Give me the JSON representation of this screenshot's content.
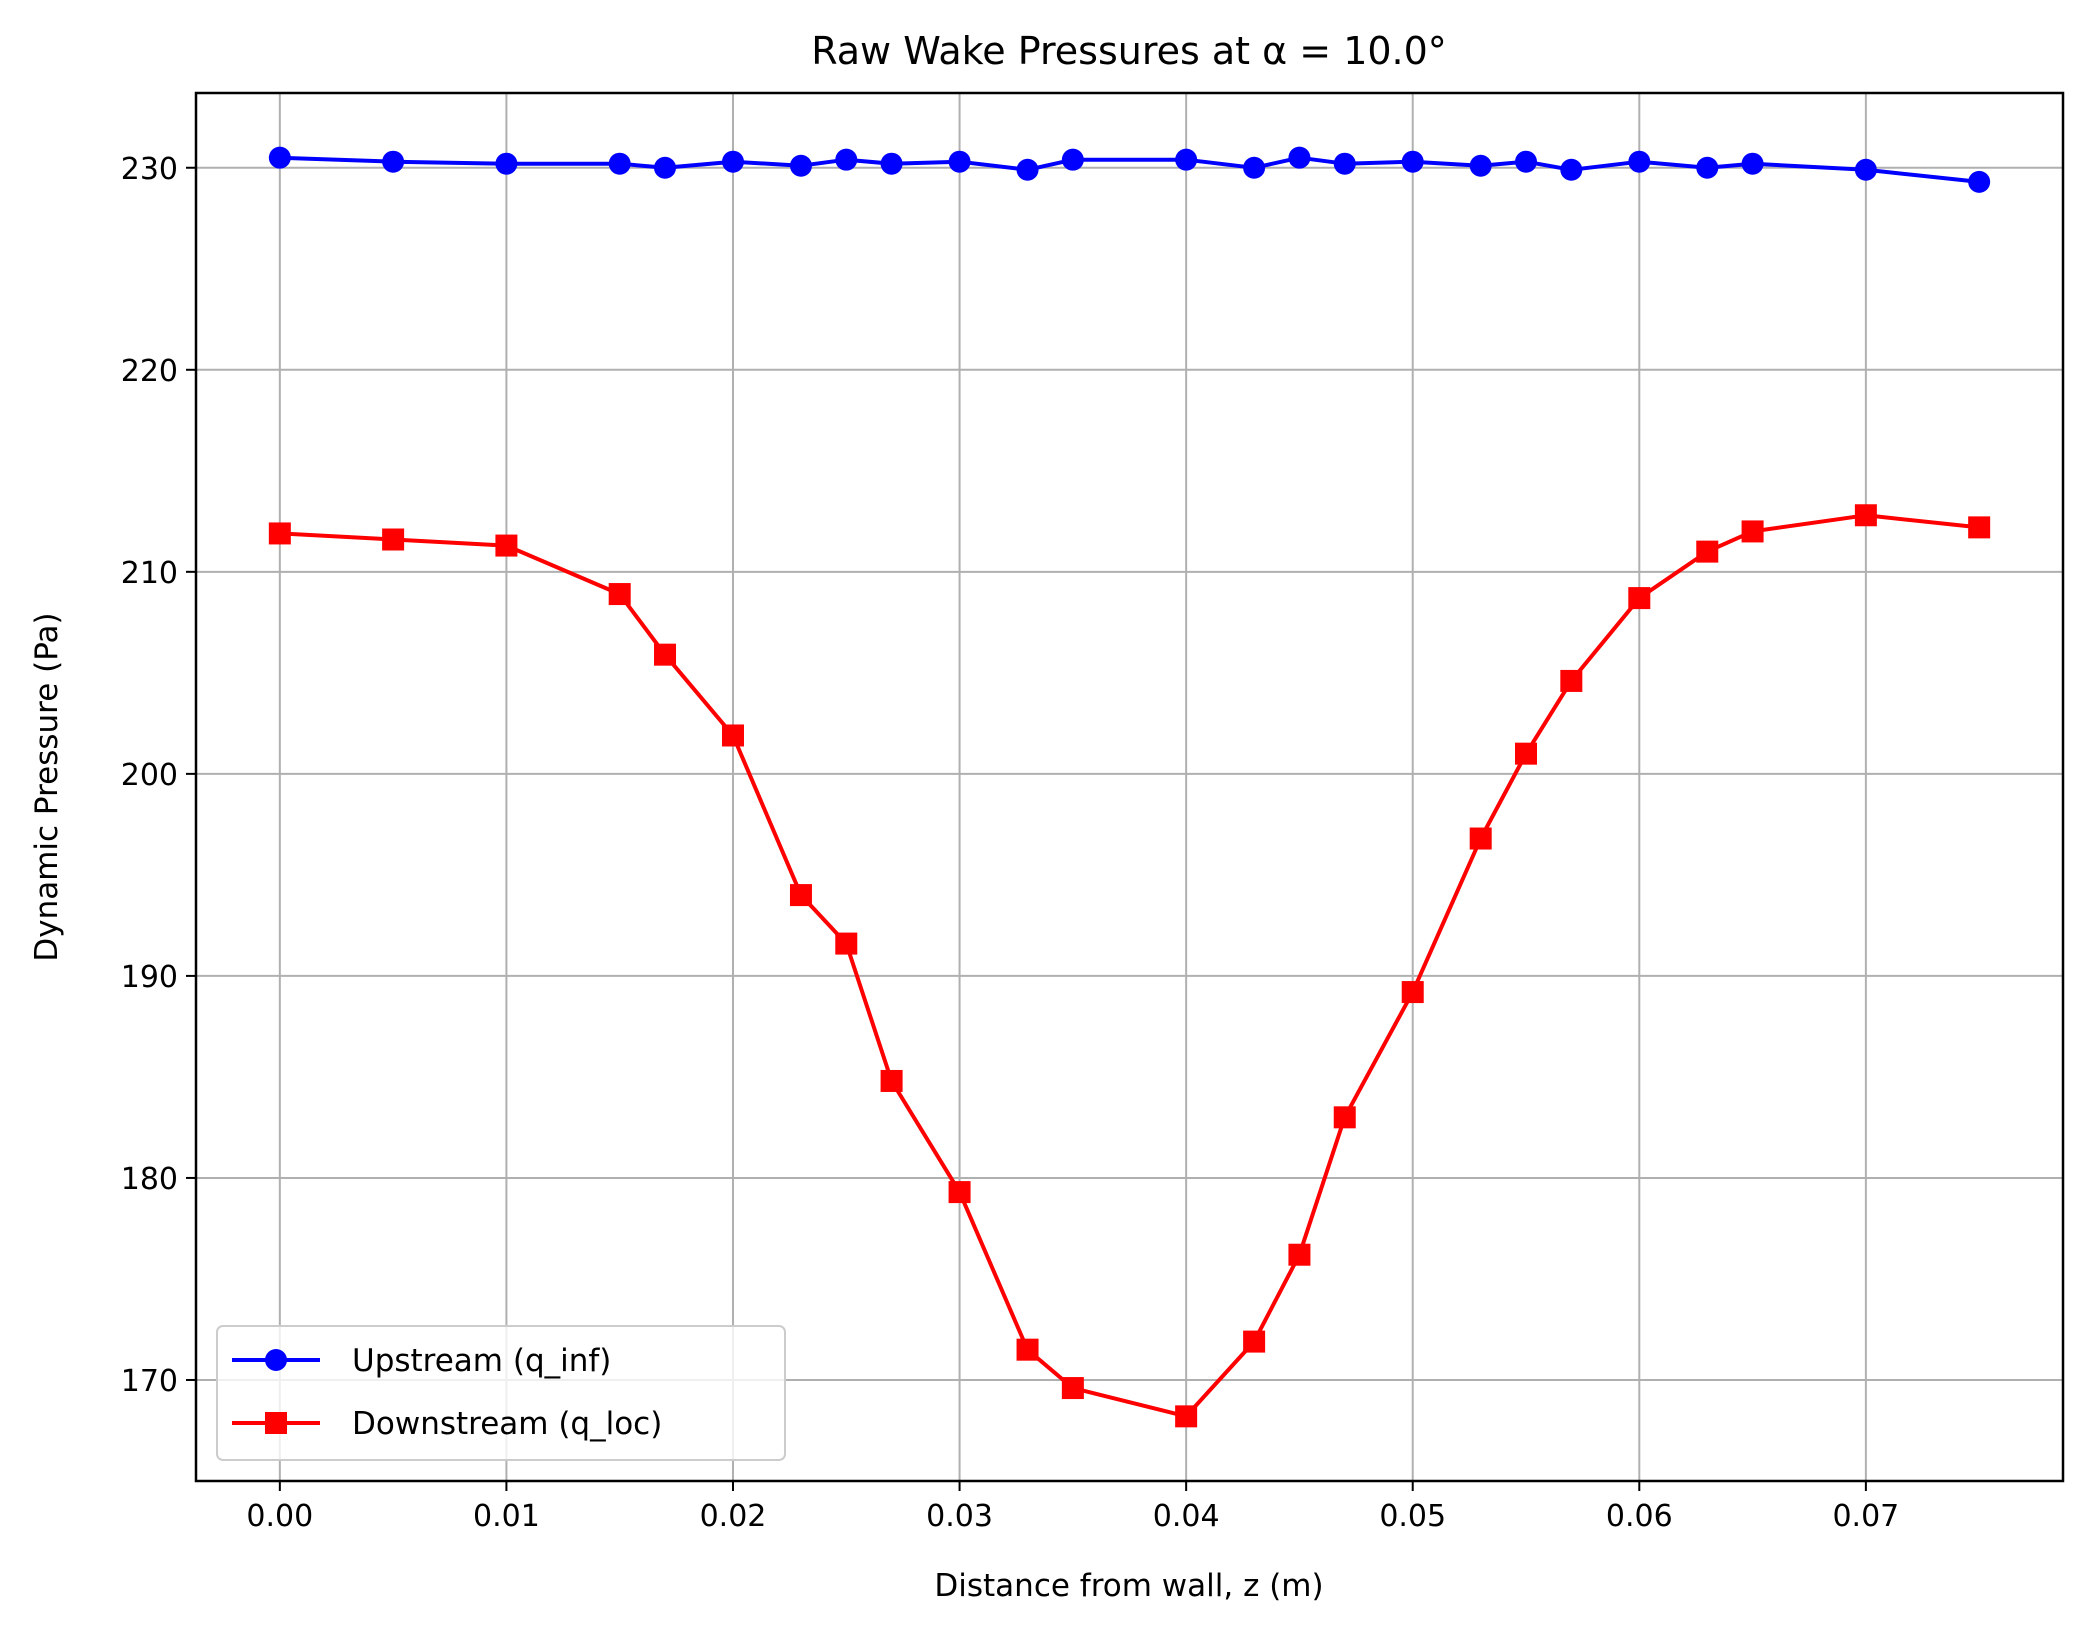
{
  "chart_data": {
    "type": "line",
    "title": "Raw Wake Pressures at α = 10.0°",
    "xlabel": "Distance from wall, z (m)",
    "ylabel": "Dynamic Pressure (Pa)",
    "xlim": [
      -0.0037,
      0.0787
    ],
    "ylim": [
      165.0,
      233.7
    ],
    "xticks": [
      0.0,
      0.01,
      0.02,
      0.03,
      0.04,
      0.05,
      0.06,
      0.07
    ],
    "xtick_labels": [
      "0.00",
      "0.01",
      "0.02",
      "0.03",
      "0.04",
      "0.05",
      "0.06",
      "0.07"
    ],
    "yticks": [
      170,
      180,
      190,
      200,
      210,
      220,
      230
    ],
    "ytick_labels": [
      "170",
      "180",
      "190",
      "200",
      "210",
      "220",
      "230"
    ],
    "grid": true,
    "legend_position": "lower-left",
    "x": [
      0.0,
      0.005,
      0.01,
      0.015,
      0.017,
      0.02,
      0.023,
      0.025,
      0.027,
      0.03,
      0.033,
      0.035,
      0.04,
      0.043,
      0.045,
      0.047,
      0.05,
      0.053,
      0.055,
      0.057,
      0.06,
      0.063,
      0.065,
      0.07,
      0.075
    ],
    "series": [
      {
        "name": "Upstream (q_inf)",
        "color": "#0000ff",
        "marker": "circle",
        "values": [
          230.5,
          230.3,
          230.2,
          230.2,
          230.0,
          230.3,
          230.1,
          230.4,
          230.2,
          230.3,
          229.9,
          230.4,
          230.4,
          230.0,
          230.5,
          230.2,
          230.3,
          230.1,
          230.3,
          229.9,
          230.3,
          230.0,
          230.2,
          229.9,
          229.3
        ]
      },
      {
        "name": "Downstream (q_loc)",
        "color": "#ff0000",
        "marker": "square",
        "values": [
          211.9,
          211.6,
          211.3,
          208.9,
          205.9,
          201.9,
          194.0,
          191.6,
          184.8,
          179.3,
          171.5,
          169.6,
          168.2,
          171.9,
          176.2,
          183.0,
          189.2,
          196.8,
          201.0,
          204.6,
          208.7,
          211.0,
          212.0,
          212.8,
          212.2
        ]
      }
    ]
  }
}
